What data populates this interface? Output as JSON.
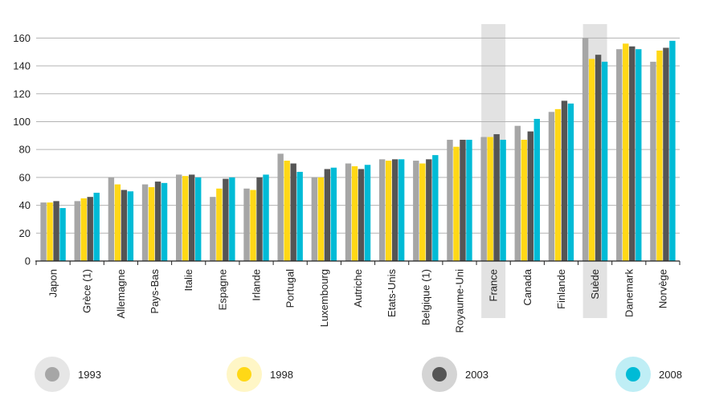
{
  "chart_data": {
    "type": "bar",
    "title": "",
    "xlabel": "",
    "ylabel": "",
    "ylim": [
      0,
      170
    ],
    "yticks": [
      0,
      20,
      40,
      60,
      80,
      100,
      120,
      140,
      160
    ],
    "grid": true,
    "highlighted_categories": [
      "France",
      "Suède"
    ],
    "categories": [
      "Japon",
      "Grèce (1)",
      "Allemagne",
      "Pays-Bas",
      "Italie",
      "Espagne",
      "Irlande",
      "Portugal",
      "Luxembourg",
      "Autriche",
      "Etats-Unis",
      "Belgique (1)",
      "Royaume-Uni",
      "France",
      "Canada",
      "Finlande",
      "Suède",
      "Danemark",
      "Norvège"
    ],
    "series": [
      {
        "name": "1993",
        "color": "#a6a6a6",
        "values": [
          42,
          43,
          60,
          55,
          62,
          46,
          52,
          77,
          60,
          70,
          73,
          72,
          87,
          89,
          97,
          107,
          160,
          152,
          143
        ]
      },
      {
        "name": "1998",
        "color": "#ffd816",
        "values": [
          42,
          45,
          55,
          53,
          61,
          52,
          51,
          72,
          60,
          68,
          72,
          70,
          82,
          89,
          87,
          109,
          145,
          156,
          151
        ]
      },
      {
        "name": "2003",
        "color": "#555555",
        "values": [
          43,
          46,
          51,
          57,
          62,
          59,
          60,
          70,
          66,
          66,
          73,
          73,
          87,
          91,
          93,
          115,
          148,
          154,
          153
        ]
      },
      {
        "name": "2008",
        "color": "#00bbd6",
        "values": [
          38,
          49,
          50,
          56,
          60,
          60,
          62,
          64,
          67,
          69,
          73,
          76,
          87,
          87,
          102,
          113,
          143,
          152,
          158
        ]
      }
    ]
  },
  "legend": [
    {
      "label": "1993",
      "dot_color": "#a6a6a6",
      "halo_color": "#e6e6e6"
    },
    {
      "label": "1998",
      "dot_color": "#ffd816",
      "halo_color": "#fff6c6"
    },
    {
      "label": "2003",
      "dot_color": "#555555",
      "halo_color": "#d4d4d4"
    },
    {
      "label": "2008",
      "dot_color": "#00bbd6",
      "halo_color": "#bfeef5"
    }
  ]
}
